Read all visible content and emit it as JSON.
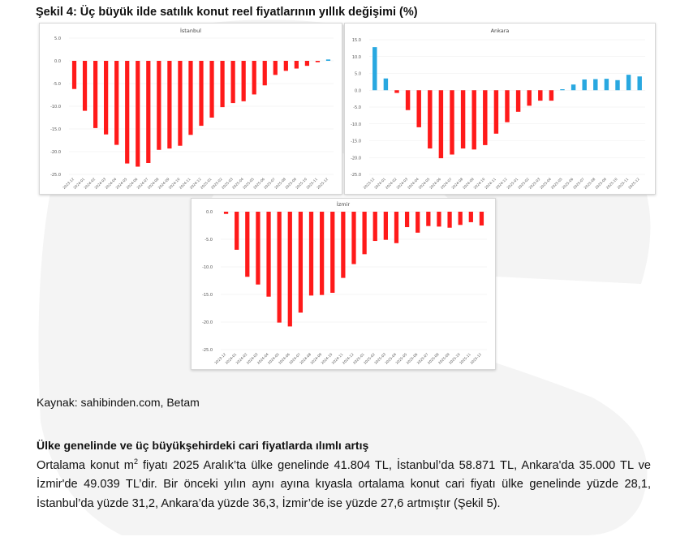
{
  "figure": {
    "title": "Şekil 4: Üç büyük ilde satılık konut reel fiyatlarının yıllık değişimi (%)"
  },
  "colors": {
    "negative_bar": "#ff1a1a",
    "positive_bar": "#29a8e0",
    "axis_text": "#555555",
    "gridline": "#eeeeee"
  },
  "chart_data": [
    {
      "type": "bar",
      "title": "İstanbul",
      "xlabel": "",
      "ylabel": "",
      "ylim": [
        -25,
        5
      ],
      "yticks": [
        "5.0",
        "0.0",
        "-5.0",
        "-10.0",
        "-15.0",
        "-20.0",
        "-25.0"
      ],
      "ytick_values": [
        5,
        0,
        -5,
        -10,
        -15,
        -20,
        -25
      ],
      "categories": [
        "2023-12",
        "2024-01",
        "2024-02",
        "2024-03",
        "2024-04",
        "2024-05",
        "2024-06",
        "2024-07",
        "2024-08",
        "2024-09",
        "2024-10",
        "2024-11",
        "2024-12",
        "2025-01",
        "2025-02",
        "2025-03",
        "2025-04",
        "2025-05",
        "2025-06",
        "2025-07",
        "2025-08",
        "2025-09",
        "2025-10",
        "2025-11",
        "2025-12"
      ],
      "values": [
        -6.2,
        -11,
        -14.8,
        -16.2,
        -18.5,
        -22.6,
        -23.3,
        -22.5,
        -19.6,
        -19.3,
        -18.7,
        -16.3,
        -14.3,
        -12.5,
        -10.2,
        -9.3,
        -8.9,
        -7.4,
        -5.4,
        -3.1,
        -2.2,
        -1.7,
        -1.1,
        -0.3,
        0.3
      ],
      "positive_color_applies": false
    },
    {
      "type": "bar",
      "title": "Ankara",
      "xlabel": "",
      "ylabel": "",
      "ylim": [
        -25,
        15
      ],
      "yticks": [
        "15.0",
        "10.0",
        "5.0",
        "0.0",
        "-5.0",
        "-10.0",
        "-15.0",
        "-20.0",
        "-25.0"
      ],
      "ytick_values": [
        15,
        10,
        5,
        0,
        -5,
        -10,
        -15,
        -20,
        -25
      ],
      "categories": [
        "2023-12",
        "2024-01",
        "2024-02",
        "2024-03",
        "2024-04",
        "2024-05",
        "2024-06",
        "2024-07",
        "2024-08",
        "2024-09",
        "2024-10",
        "2024-11",
        "2024-12",
        "2025-01",
        "2025-02",
        "2025-03",
        "2025-04",
        "2025-05",
        "2025-06",
        "2025-07",
        "2025-08",
        "2025-09",
        "2025-10",
        "2025-11",
        "2025-12"
      ],
      "values": [
        12.8,
        3.5,
        -0.8,
        -5.9,
        -11,
        -17.3,
        -20.2,
        -19.1,
        -17.3,
        -17.6,
        -16.3,
        -12.9,
        -9.5,
        -6.4,
        -4.6,
        -3.1,
        -3.1,
        0.3,
        1.7,
        3.2,
        3.3,
        3.4,
        3.0,
        4.6,
        4.1
      ],
      "positive_color_applies": true
    },
    {
      "type": "bar",
      "title": "İzmir",
      "xlabel": "",
      "ylabel": "",
      "ylim": [
        -25,
        0
      ],
      "yticks": [
        "0.0",
        "-5.0",
        "-10.0",
        "-15.0",
        "-20.0",
        "-25.0"
      ],
      "ytick_values": [
        0,
        -5,
        -10,
        -15,
        -20,
        -25
      ],
      "categories": [
        "2023-12",
        "2024-01",
        "2024-02",
        "2024-03",
        "2024-04",
        "2024-05",
        "2024-06",
        "2024-07",
        "2024-08",
        "2024-09",
        "2024-10",
        "2024-11",
        "2024-12",
        "2025-01",
        "2025-02",
        "2025-03",
        "2025-04",
        "2025-05",
        "2025-06",
        "2025-07",
        "2025-08",
        "2025-09",
        "2025-10",
        "2025-11",
        "2025-12"
      ],
      "values": [
        -0.4,
        -6.9,
        -11.8,
        -13.2,
        -15.4,
        -20.1,
        -20.8,
        -18.3,
        -15.2,
        -15.1,
        -14.7,
        -12.0,
        -9.5,
        -7.7,
        -5.3,
        -5.1,
        -5.7,
        -2.8,
        -3.8,
        -2.6,
        -2.7,
        -2.9,
        -2.4,
        -1.9,
        -2.5
      ],
      "positive_color_applies": false
    }
  ],
  "source": "Kaynak: sahibinden.com, Betam",
  "section": {
    "heading": "Ülke genelinde ve üç büyükşehirdeki cari fiyatlarda ılımlı artış",
    "paragraph_part1": "Ortalama konut m",
    "paragraph_sup": "2",
    "paragraph_part2": " fiyatı 2025 Aralık’ta ülke genelinde 41.804 TL, İstanbul’da 58.871 TL, Ankara'da 35.000 TL ve İzmir'de 49.039 TL’dir. Bir önceki yılın aynı ayına kıyasla ortalama konut cari fiyatı ülke genelinde yüzde 28,1, İstanbul’da yüzde 31,2, Ankara’da yüzde 36,3, İzmir’de ise yüzde 27,6 artmıştır (Şekil 5)."
  }
}
